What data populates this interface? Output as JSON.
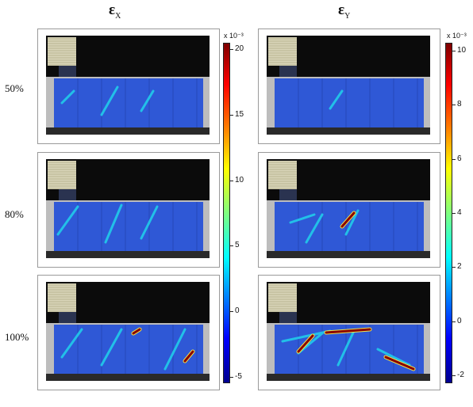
{
  "column_titles": [
    {
      "symbol": "ε",
      "subscript": "X"
    },
    {
      "symbol": "ε",
      "subscript": "Y"
    }
  ],
  "row_labels": [
    "50%",
    "80%",
    "100%"
  ],
  "colorbars": [
    {
      "exponent_label": "x 10⁻³",
      "ticks": [
        "20",
        "15",
        "10",
        "5",
        "0",
        "-5"
      ],
      "range": [
        -5.5,
        20.5
      ]
    },
    {
      "exponent_label": "x 10⁻³",
      "ticks": [
        "10",
        "8",
        "6",
        "4",
        "2",
        "0",
        "-2"
      ],
      "range": [
        -2.3,
        10.3
      ]
    }
  ],
  "colormap_colors": [
    "#7f0000",
    "#ff0000",
    "#ff7f00",
    "#ffff00",
    "#7fff7f",
    "#00ffff",
    "#007fff",
    "#0000ff",
    "#00008f"
  ]
}
